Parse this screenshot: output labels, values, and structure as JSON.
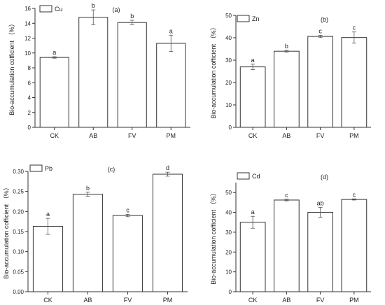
{
  "chart_data": [
    {
      "type": "bar",
      "panel_label": "(a)",
      "legend": "Cu",
      "legend_position": "top-left",
      "ylabel": "Bio-accumulation cofficient （%）",
      "categories": [
        "CK",
        "AB",
        "FV",
        "PM"
      ],
      "values": [
        9.4,
        14.8,
        14.1,
        11.3
      ],
      "errors": [
        0.1,
        1.0,
        0.3,
        1.1
      ],
      "letters": [
        "a",
        "b",
        "b",
        "a"
      ],
      "ylim": [
        0,
        16
      ],
      "yticks": [
        0,
        2,
        4,
        6,
        8,
        10,
        12,
        14,
        16
      ],
      "ytick_labels": [
        "0",
        "2",
        "4",
        "6",
        "8",
        "10",
        "12",
        "14",
        "16"
      ],
      "grid": false
    },
    {
      "type": "bar",
      "panel_label": "(b)",
      "legend": "Zn",
      "legend_position": "top-left",
      "ylabel": "Bio-accumulation cofficient （%）",
      "categories": [
        "CK",
        "AB",
        "FV",
        "PM"
      ],
      "values": [
        27,
        34,
        40.6,
        40.1
      ],
      "errors": [
        1.2,
        0.4,
        0.5,
        2.5
      ],
      "letters": [
        "a",
        "b",
        "c",
        "c"
      ],
      "ylim": [
        0,
        50
      ],
      "yticks": [
        0,
        10,
        20,
        30,
        40,
        50
      ],
      "ytick_labels": [
        "0",
        "10",
        "20",
        "30",
        "40",
        "50"
      ],
      "grid": false
    },
    {
      "type": "bar",
      "panel_label": "(c)",
      "legend": "Pb",
      "legend_position": "top-left",
      "ylabel": "Bio-accumulation cofficient （%）",
      "categories": [
        "CK",
        "AB",
        "FV",
        "PM"
      ],
      "values": [
        0.163,
        0.243,
        0.19,
        0.293
      ],
      "errors": [
        0.02,
        0.005,
        0.003,
        0.005
      ],
      "letters": [
        "a",
        "b",
        "c",
        "d"
      ],
      "ylim": [
        0,
        0.3
      ],
      "yticks": [
        0,
        0.05,
        0.1,
        0.15,
        0.2,
        0.25,
        0.3
      ],
      "ytick_labels": [
        "0.00",
        "0.05",
        "0.10",
        "0.15",
        "0.20",
        "0.25",
        "0.30"
      ],
      "grid": false
    },
    {
      "type": "bar",
      "panel_label": "(d)",
      "legend": "Cd",
      "legend_position": "top-left",
      "ylabel": "Bio-accumulation cofficient （%）",
      "categories": [
        "CK",
        "AB",
        "FV",
        "PM"
      ],
      "values": [
        35,
        46.2,
        40,
        46.5
      ],
      "errors": [
        3.0,
        0.4,
        2.5,
        0.3
      ],
      "letters": [
        "a",
        "c",
        "ab",
        "c"
      ],
      "ylim": [
        0,
        55
      ],
      "yticks": [
        0,
        10,
        20,
        30,
        40,
        50
      ],
      "ytick_labels": [
        "0",
        "10",
        "20",
        "30",
        "40",
        "50"
      ],
      "grid": false
    }
  ]
}
